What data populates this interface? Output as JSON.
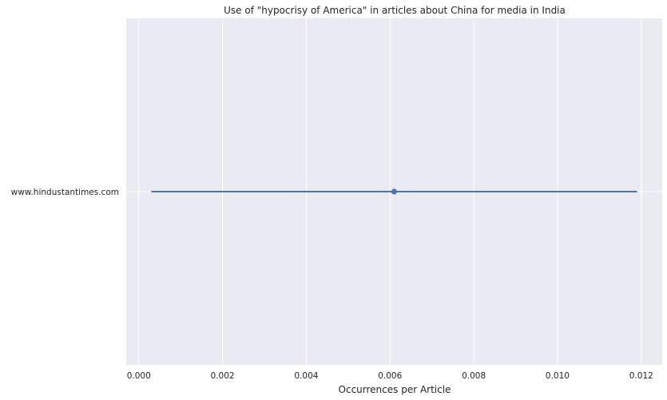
{
  "chart_data": {
    "type": "point_errorbar",
    "title": "Use of \"hypocrisy of America\" in articles about China for media in India",
    "xlabel": "Occurrences per Article",
    "ylabel": "",
    "xlim": [
      -0.0003,
      0.0125
    ],
    "x_ticks": [
      0.0,
      0.002,
      0.004,
      0.006,
      0.008,
      0.01,
      0.012
    ],
    "x_tick_labels": [
      "0.000",
      "0.002",
      "0.004",
      "0.006",
      "0.008",
      "0.010",
      "0.012"
    ],
    "categories": [
      "www.hindustantimes.com"
    ],
    "series": [
      {
        "values": [
          0.0061
        ],
        "ci_low": [
          0.0003
        ],
        "ci_high": [
          0.0119
        ]
      }
    ],
    "grid": true,
    "colors": {
      "plot_background": "#eaeaf2",
      "grid": "#ffffff",
      "series": "#4c72b0",
      "text": "#262626"
    }
  }
}
